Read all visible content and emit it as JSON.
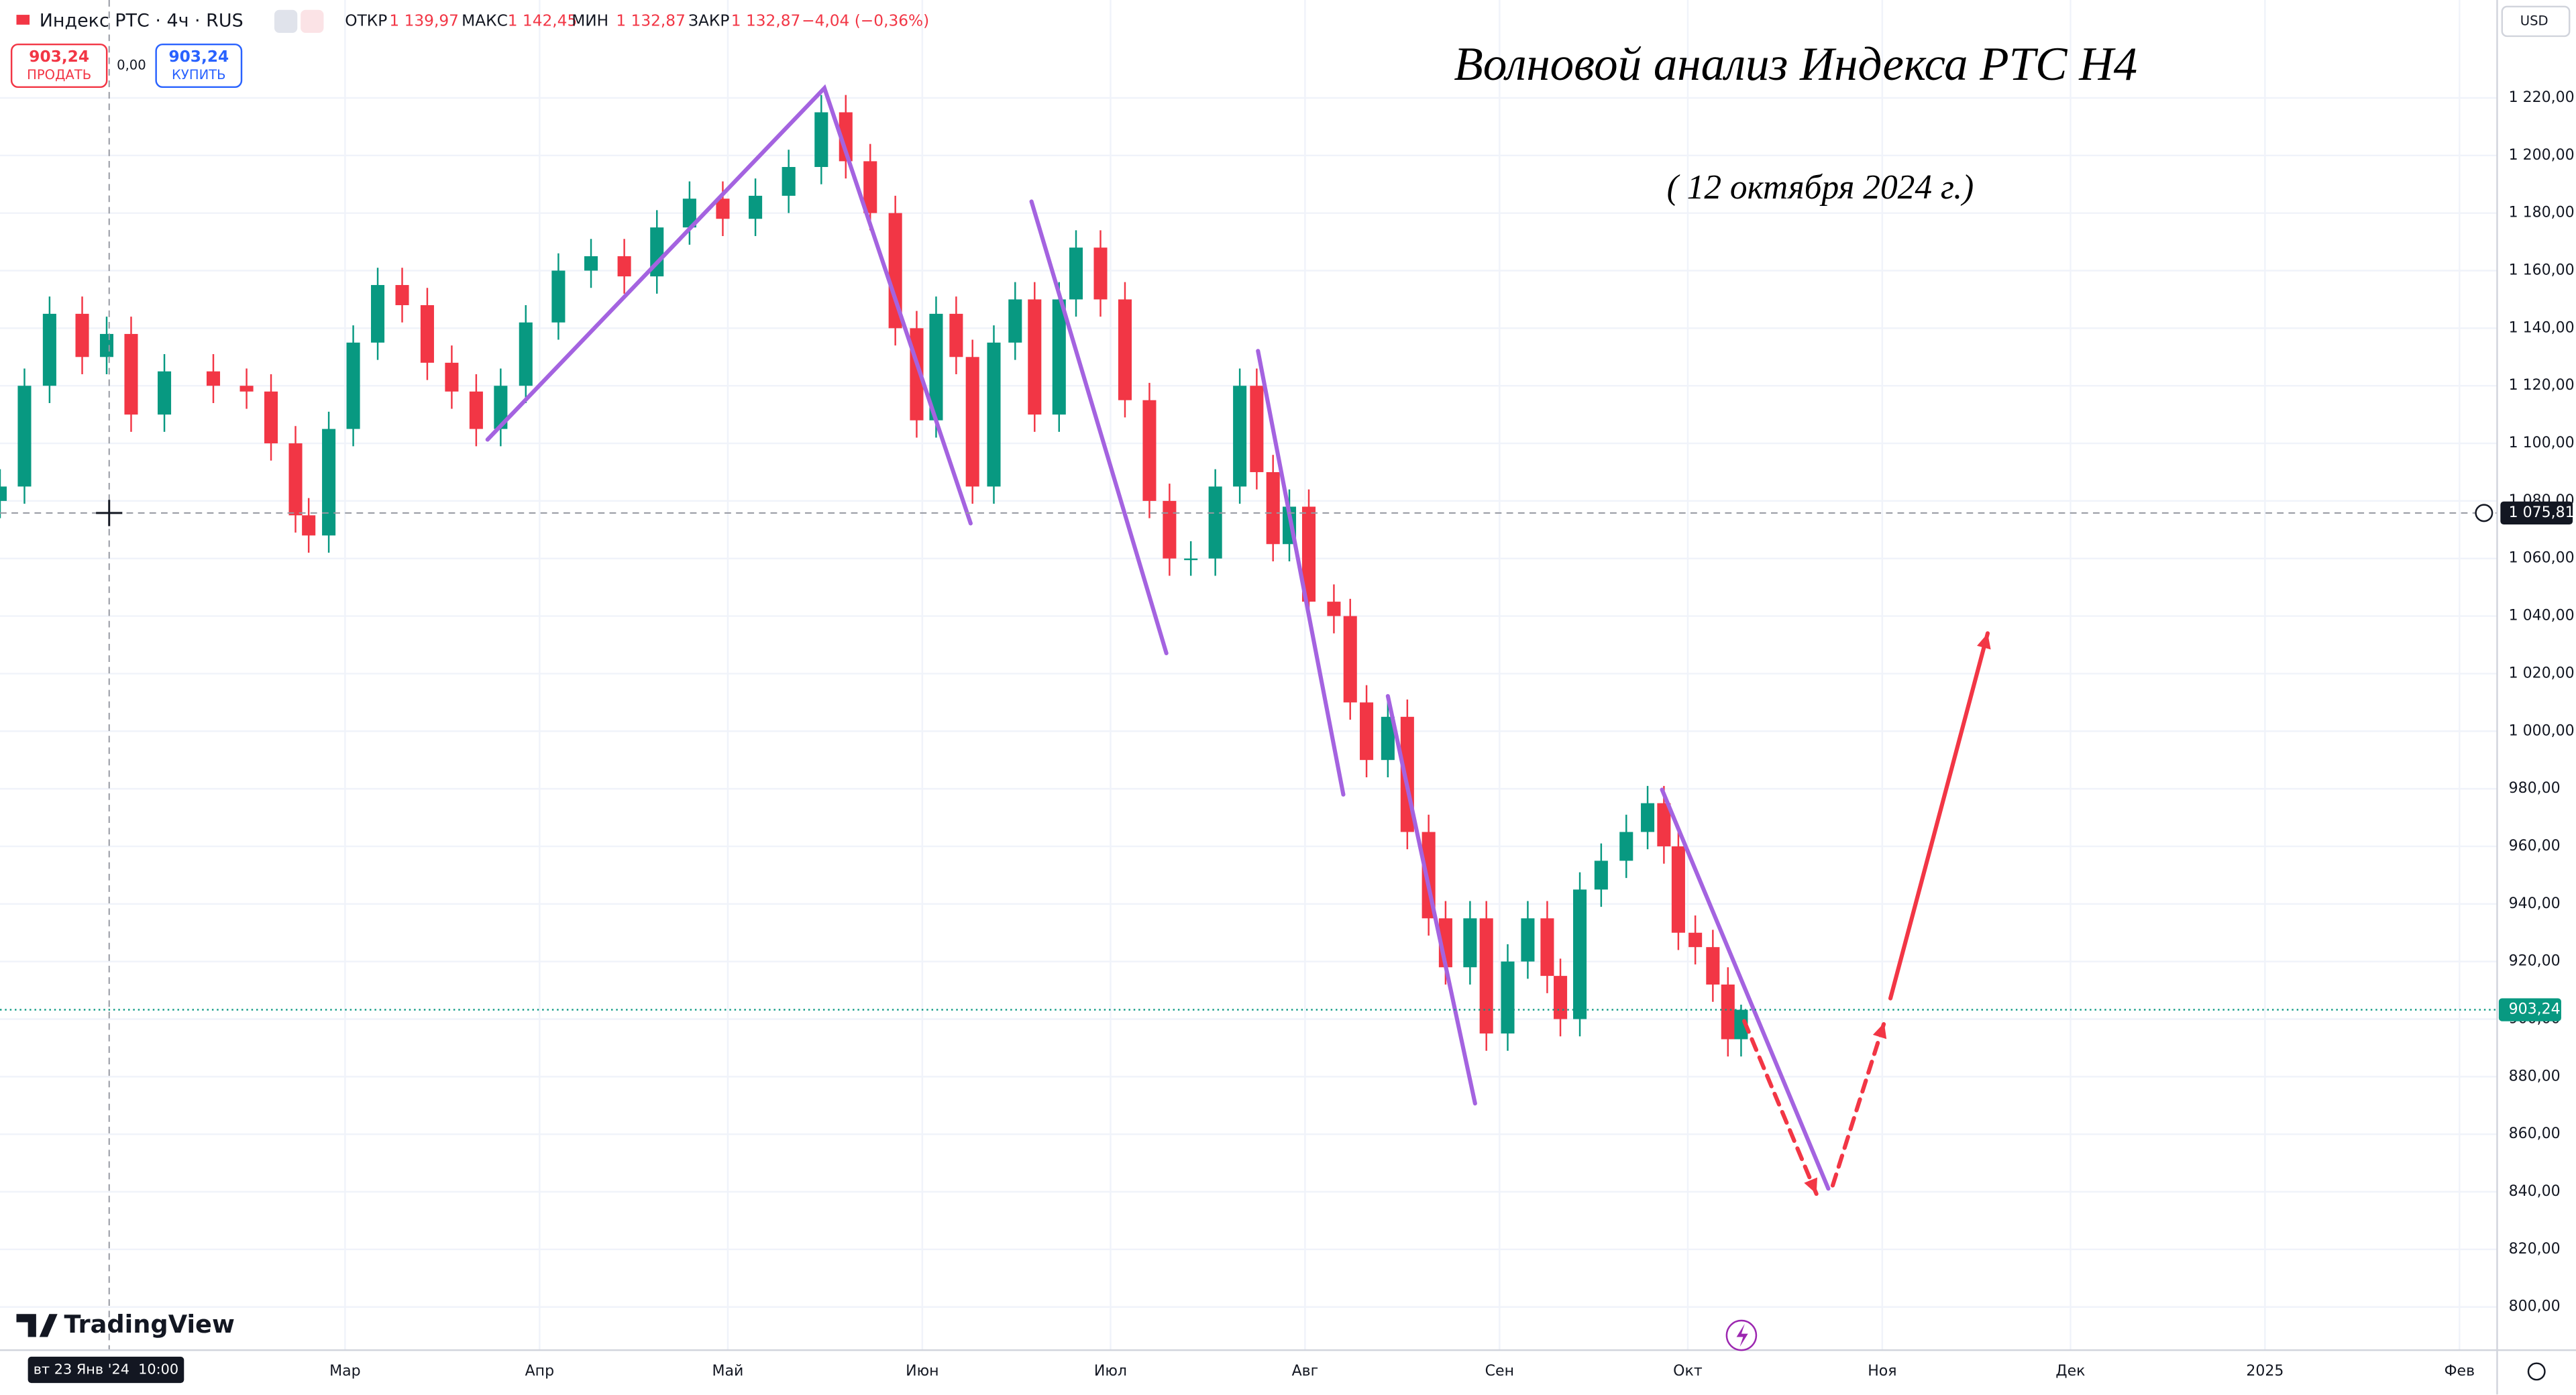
{
  "header": {
    "symbol": "Индекс РТС · 4ч · RUS",
    "ohlc": [
      {
        "label": "ОТКР",
        "value": "1 139,97"
      },
      {
        "label": "МАКС",
        "value": "1 142,45"
      },
      {
        "label": "МИН",
        "value": "1 132,87"
      },
      {
        "label": "ЗАКР",
        "value": "1 132,87"
      }
    ],
    "change": "−4,04 (−0,36%)"
  },
  "trade": {
    "sell_price": "903,24",
    "sell_label": "ПРОДАТЬ",
    "spread": "0,00",
    "buy_price": "903,24",
    "buy_label": "КУПИТЬ"
  },
  "currency": "USD",
  "logo": "TradingView",
  "chart_data": {
    "type": "candlestick",
    "title": "Волновой анализ Индекса РТС Н4",
    "subtitle": "( 12 октября 2024 г.)",
    "x": [
      5.0,
      8.9,
      12.9,
      18.1,
      22.0,
      25.9,
      31.2,
      39.0,
      44.3,
      48.2,
      52.1,
      54.2,
      57.4,
      61.3,
      65.2,
      69.1,
      73.1,
      77.0,
      80.9,
      84.8,
      88.8,
      94.0,
      99.2,
      104.5,
      109.7,
      114.9,
      120.2,
      125.4,
      130.7,
      135.9,
      139.8,
      143.7,
      147.7,
      151.1,
      154.2,
      157.4,
      160.0,
      163.4,
      166.8,
      169.9,
      173.8,
      176.5,
      180.4,
      184.3,
      188.2,
      191.4,
      194.8,
      198.7,
      202.6,
      205.3,
      207.9,
      210.5,
      213.6,
      217.6,
      220.2,
      222.8,
      226.2,
      229.3,
      232.7,
      235.4,
      239.3,
      241.9,
      245.3,
      248.5,
      251.6,
      253.7,
      256.8,
      260.2,
      264.2,
      267.6,
      270.2,
      272.5,
      275.2,
      278.0,
      280.4,
      282.5
    ],
    "open": [
      1080,
      1085,
      1120,
      1145,
      1130,
      1138,
      1110,
      1125,
      1120,
      1118,
      1100,
      1075,
      1068,
      1105,
      1135,
      1155,
      1148,
      1128,
      1118,
      1105,
      1120,
      1142,
      1160,
      1165,
      1158,
      1175,
      1185,
      1178,
      1186,
      1196,
      1215,
      1198,
      1180,
      1140,
      1108,
      1145,
      1130,
      1085,
      1135,
      1150,
      1110,
      1150,
      1168,
      1150,
      1115,
      1080,
      1060,
      1060,
      1085,
      1120,
      1090,
      1065,
      1078,
      1045,
      1040,
      1010,
      990,
      1005,
      965,
      935,
      918,
      935,
      895,
      920,
      935,
      915,
      900,
      945,
      955,
      965,
      975,
      960,
      930,
      925,
      912,
      893
    ],
    "high": [
      1091,
      1126,
      1151,
      1151,
      1144,
      1144,
      1131,
      1131,
      1126,
      1124,
      1106,
      1081,
      1111,
      1141,
      1161,
      1161,
      1154,
      1134,
      1124,
      1126,
      1148,
      1166,
      1171,
      1171,
      1181,
      1191,
      1191,
      1192,
      1202,
      1221,
      1221,
      1204,
      1186,
      1146,
      1151,
      1151,
      1136,
      1141,
      1156,
      1156,
      1156,
      1174,
      1174,
      1156,
      1121,
      1086,
      1066,
      1091,
      1126,
      1126,
      1096,
      1084,
      1084,
      1051,
      1046,
      1016,
      1011,
      1011,
      971,
      941,
      941,
      941,
      926,
      941,
      941,
      921,
      951,
      961,
      971,
      981,
      981,
      966,
      936,
      931,
      918,
      905
    ],
    "low": [
      1074,
      1079,
      1114,
      1124,
      1124,
      1104,
      1104,
      1114,
      1112,
      1094,
      1069,
      1062,
      1062,
      1099,
      1129,
      1142,
      1122,
      1112,
      1099,
      1099,
      1114,
      1136,
      1154,
      1152,
      1152,
      1169,
      1172,
      1172,
      1180,
      1190,
      1192,
      1174,
      1134,
      1102,
      1102,
      1124,
      1079,
      1079,
      1129,
      1104,
      1104,
      1144,
      1144,
      1109,
      1074,
      1054,
      1054,
      1054,
      1079,
      1084,
      1059,
      1059,
      1039,
      1034,
      1004,
      984,
      984,
      959,
      929,
      912,
      912,
      889,
      889,
      914,
      909,
      894,
      894,
      939,
      949,
      959,
      954,
      924,
      919,
      906,
      887,
      887
    ],
    "close": [
      1085,
      1120,
      1145,
      1130,
      1138,
      1110,
      1125,
      1120,
      1118,
      1100,
      1075,
      1068,
      1105,
      1135,
      1155,
      1148,
      1128,
      1118,
      1105,
      1120,
      1142,
      1160,
      1165,
      1158,
      1175,
      1185,
      1178,
      1186,
      1196,
      1215,
      1198,
      1180,
      1140,
      1108,
      1145,
      1130,
      1085,
      1135,
      1150,
      1110,
      1150,
      1168,
      1150,
      1115,
      1080,
      1060,
      1060,
      1085,
      1120,
      1090,
      1065,
      1078,
      1045,
      1040,
      1010,
      990,
      1005,
      965,
      935,
      918,
      935,
      895,
      920,
      935,
      915,
      900,
      945,
      955,
      965,
      975,
      960,
      930,
      925,
      912,
      893,
      903.24
    ],
    "colors": {
      "up": "#089981",
      "down": "#f23645"
    },
    "xlim": [
      5,
      403
    ],
    "ylim": [
      785,
      1254
    ],
    "grid": true,
    "xticks": [
      {
        "value": 60,
        "label": "Мар"
      },
      {
        "value": 91,
        "label": "Апр"
      },
      {
        "value": 121,
        "label": "Май"
      },
      {
        "value": 152,
        "label": "Июн"
      },
      {
        "value": 182,
        "label": "Июл"
      },
      {
        "value": 213,
        "label": "Авг"
      },
      {
        "value": 244,
        "label": "Сен"
      },
      {
        "value": 274,
        "label": "Окт"
      },
      {
        "value": 305,
        "label": "Ноя"
      },
      {
        "value": 335,
        "label": "Дек"
      },
      {
        "value": 366,
        "label": "2025"
      },
      {
        "value": 397,
        "label": "Фев"
      }
    ],
    "yticks": [
      {
        "value": 800,
        "label": "800,00"
      },
      {
        "value": 820,
        "label": "820,00"
      },
      {
        "value": 840,
        "label": "840,00"
      },
      {
        "value": 860,
        "label": "860,00"
      },
      {
        "value": 880,
        "label": "880,00"
      },
      {
        "value": 900,
        "label": "900,00"
      },
      {
        "value": 920,
        "label": "920,00"
      },
      {
        "value": 940,
        "label": "940,00"
      },
      {
        "value": 960,
        "label": "960,00"
      },
      {
        "value": 980,
        "label": "980,00"
      },
      {
        "value": 1000,
        "label": "1 000,00"
      },
      {
        "value": 1020,
        "label": "1 020,00"
      },
      {
        "value": 1040,
        "label": "1 040,00"
      },
      {
        "value": 1060,
        "label": "1 060,00"
      },
      {
        "value": 1080,
        "label": "1 080,00"
      },
      {
        "value": 1100,
        "label": "1 100,00"
      },
      {
        "value": 1120,
        "label": "1 120,00"
      },
      {
        "value": 1140,
        "label": "1 140,00"
      },
      {
        "value": 1160,
        "label": "1 160,00"
      },
      {
        "value": 1180,
        "label": "1 180,00"
      },
      {
        "value": 1200,
        "label": "1 200,00"
      },
      {
        "value": 1220,
        "label": "1 220,00"
      }
    ],
    "last_price": {
      "value": 903.24,
      "label": "903,24"
    },
    "crosshair": {
      "x": 22.4,
      "label": "вт 23 Янв '24  10:00",
      "price": {
        "value": 1075.81,
        "label": "1 075,81"
      }
    },
    "drawings": [
      {
        "color": "#a463e0",
        "dashed": false,
        "arrow": false,
        "x": [
          82.7,
          136.4,
          159.7
        ],
        "y": [
          1101.3,
          1223.4,
          1072.2
        ]
      },
      {
        "color": "#a463e0",
        "dashed": false,
        "arrow": false,
        "x": [
          169.4,
          190.9
        ],
        "y": [
          1184.0,
          1027.1
        ]
      },
      {
        "color": "#a463e0",
        "dashed": false,
        "arrow": false,
        "x": [
          205.5,
          219.1
        ],
        "y": [
          1132.1,
          978.0
        ]
      },
      {
        "color": "#a463e0",
        "dashed": false,
        "arrow": false,
        "x": [
          226.2,
          240.1
        ],
        "y": [
          1012.2,
          870.7
        ]
      },
      {
        "color": "#a463e0",
        "dashed": false,
        "arrow": false,
        "x": [
          269.9,
          296.4
        ],
        "y": [
          979.7,
          841.1
        ]
      },
      {
        "color": "#f23645",
        "dashed": true,
        "arrow": true,
        "x": [
          283.0,
          294.5
        ],
        "y": [
          899.3,
          839.3
        ]
      },
      {
        "color": "#f23645",
        "dashed": true,
        "arrow": true,
        "x": [
          297.1,
          305.3
        ],
        "y": [
          842.2,
          898.7
        ]
      },
      {
        "color": "#f23645",
        "dashed": false,
        "arrow": true,
        "x": [
          306.3,
          321.8
        ],
        "y": [
          907.2,
          1034.0
        ]
      }
    ]
  }
}
